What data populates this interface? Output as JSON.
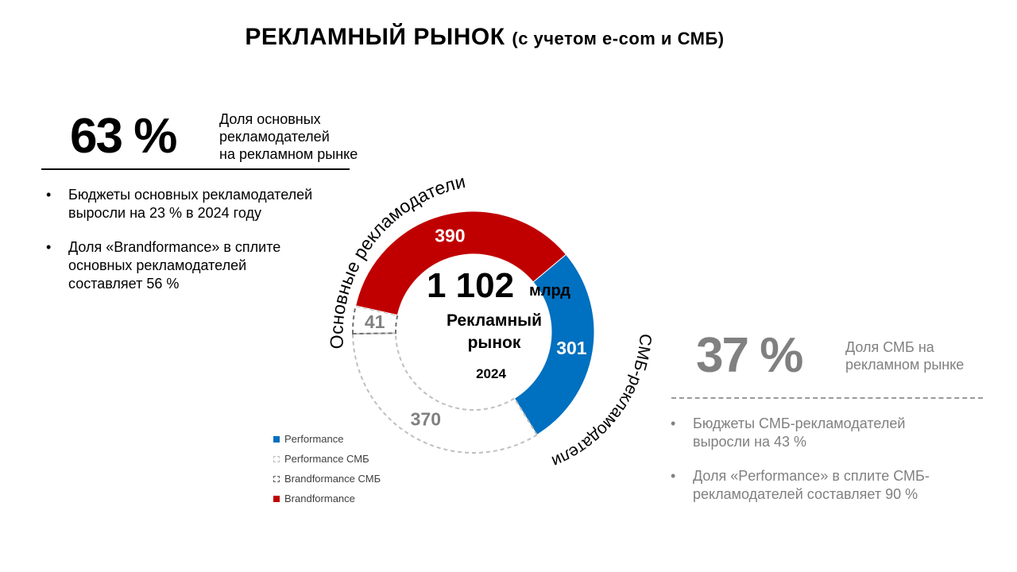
{
  "title": {
    "main": "РЕКЛАМНЫЙ РЫНОК",
    "sub": "(с учетом e-com и СМБ)"
  },
  "left": {
    "big_value": "63 %",
    "desc_lines": [
      "Доля основных",
      "рекламодателей",
      "на рекламном рынке"
    ],
    "bullets": [
      [
        "Бюджеты основных рекламодателей",
        "выросли на 23 % в 2024 году"
      ],
      [
        "Доля «Brandformance» в сплите",
        "основных рекламодателей",
        "составляет 56 %"
      ]
    ]
  },
  "right": {
    "big_value": "37 %",
    "desc_lines": [
      "Доля СМБ на",
      "рекламном рынке"
    ],
    "bullets": [
      [
        "Бюджеты СМБ-рекламодателей",
        "выросли  на 43 %"
      ],
      [
        "Доля «Performance» в сплите СМБ-",
        "рекламодателей составляет 90 %"
      ]
    ]
  },
  "center": {
    "total": "1 102",
    "unit": "млрд",
    "label_line1": "Рекламный",
    "label_line2": "рынок",
    "year": "2024",
    "arc_label_main": "Основные рекламодатели",
    "arc_label_smb": "СМБ-рекламодатели"
  },
  "colors": {
    "performance": "#0070C0",
    "brandformance": "#C00000",
    "smb": "#808080",
    "smb_dash": "#bfbfbf"
  },
  "chart_data": {
    "type": "pie",
    "variant": "donut",
    "total": 1102,
    "unit": "млрд",
    "segments": [
      {
        "name": "Performance",
        "value": 301,
        "group": "Основные рекламодатели",
        "style": "solid-blue"
      },
      {
        "name": "Performance  СМБ",
        "value": 370,
        "group": "СМБ-рекламодатели",
        "style": "dashed-light"
      },
      {
        "name": "Brandformance  СМБ",
        "value": 41,
        "group": "СМБ-рекламодатели",
        "style": "dashed-dark"
      },
      {
        "name": "Brandformance",
        "value": 390,
        "group": "Основные рекламодатели",
        "style": "solid-red"
      }
    ],
    "legend": [
      "Performance",
      "Performance  СМБ",
      "Brandformance  СМБ",
      "Brandformance"
    ],
    "legend_position": "bottom-left"
  }
}
